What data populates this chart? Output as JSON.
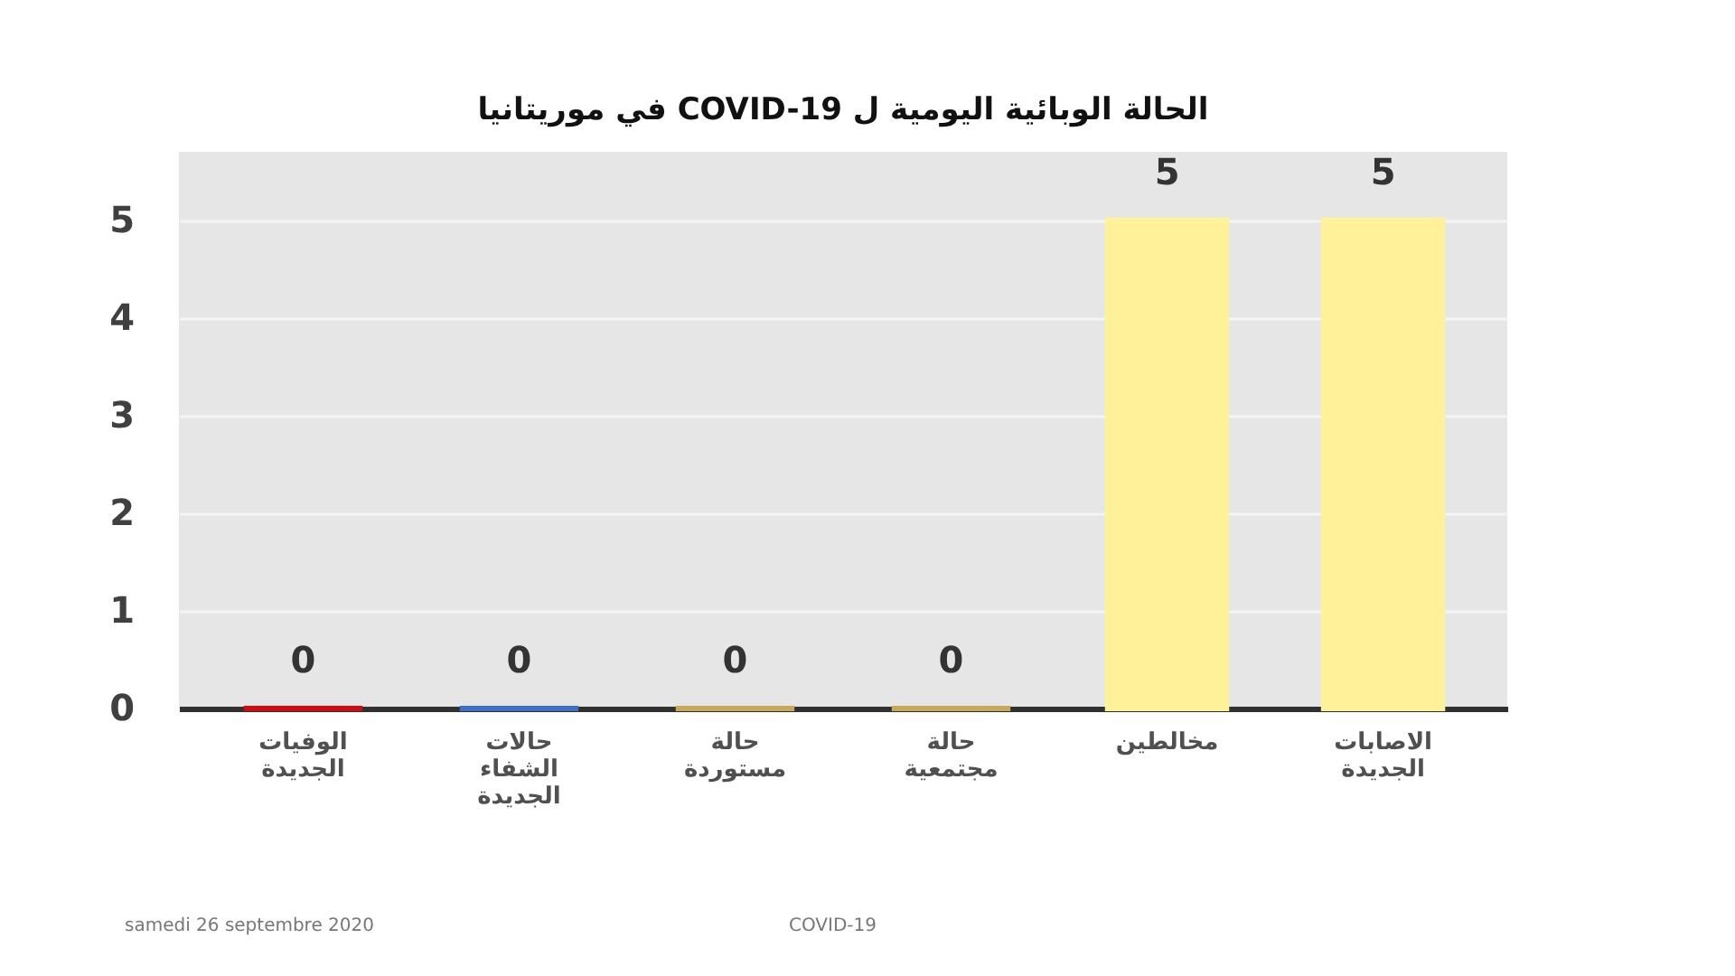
{
  "chart_data": {
    "type": "bar",
    "title": "الحالة الوبائية اليومية ل COVID-19 في موريتانيا",
    "categories": [
      "الوفيات\nالجديدة",
      "حالات\nالشفاء\nالجديدة",
      "حالة\nمستوردة",
      "حالة\nمجتمعية",
      "مخالطين",
      "الاصابات\nالجديدة"
    ],
    "values": [
      0,
      0,
      0,
      0,
      5,
      5
    ],
    "colors": [
      "#d10a14",
      "#3e6fc4",
      "#c8a85a",
      "#c8a85a",
      "#fff19a",
      "#fff19a"
    ],
    "ylim": [
      0,
      5.7
    ],
    "yticks": [
      0,
      1,
      2,
      3,
      4,
      5
    ],
    "grid": "y",
    "data_labels": true,
    "legend": false,
    "annotations": [
      "samedi 26 septembre 2020",
      "COVID-19"
    ]
  }
}
